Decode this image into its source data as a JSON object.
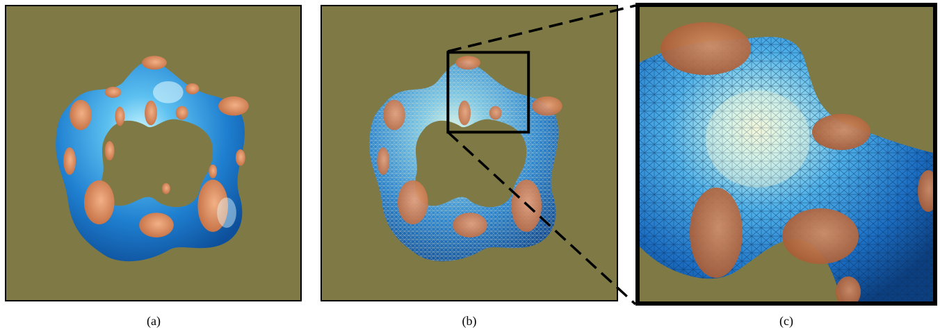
{
  "figure": {
    "panels": [
      {
        "id": "a",
        "caption": "(a)",
        "content": "smooth-torus-render"
      },
      {
        "id": "b",
        "caption": "(b)",
        "content": "wireframe-torus-render"
      },
      {
        "id": "c",
        "caption": "(c)",
        "content": "zoomed-mesh-detail"
      }
    ],
    "colors": {
      "background": "#7f7a45",
      "surface_blue": "#2f8fd6",
      "highlight": "#bdf4f4",
      "spots": "#d9875a",
      "frame": "#000000"
    }
  }
}
